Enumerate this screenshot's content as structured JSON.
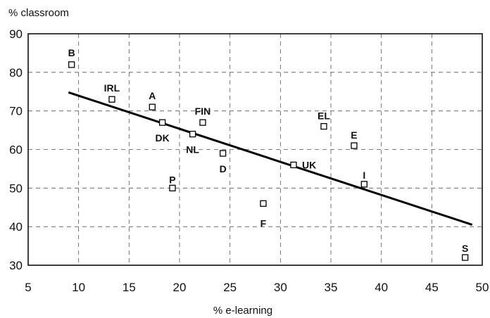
{
  "chart_data": {
    "type": "scatter",
    "ylabel": "% classroom",
    "xlabel": "% e-learning",
    "xlim": [
      5,
      50
    ],
    "ylim": [
      30,
      90
    ],
    "x_ticks": [
      5,
      10,
      15,
      20,
      25,
      30,
      35,
      40,
      45,
      50
    ],
    "y_ticks": [
      30,
      40,
      50,
      60,
      70,
      80,
      90
    ],
    "grid": true,
    "points": [
      {
        "label": "B",
        "x": 9.3,
        "y": 82
      },
      {
        "label": "IRL",
        "x": 13.3,
        "y": 73
      },
      {
        "label": "A",
        "x": 17.3,
        "y": 71
      },
      {
        "label": "DK",
        "x": 18.3,
        "y": 67
      },
      {
        "label": "NL",
        "x": 21.3,
        "y": 64
      },
      {
        "label": "FIN",
        "x": 22.3,
        "y": 67
      },
      {
        "label": "D",
        "x": 24.3,
        "y": 59
      },
      {
        "label": "P",
        "x": 19.3,
        "y": 50
      },
      {
        "label": "F",
        "x": 28.3,
        "y": 46
      },
      {
        "label": "UK",
        "x": 31.3,
        "y": 56
      },
      {
        "label": "EL",
        "x": 34.3,
        "y": 66
      },
      {
        "label": "E",
        "x": 37.3,
        "y": 61
      },
      {
        "label": "I",
        "x": 38.3,
        "y": 51
      },
      {
        "label": "S",
        "x": 48.3,
        "y": 32
      }
    ],
    "trendline": {
      "x": [
        9,
        49
      ],
      "y": [
        74.8,
        40.5
      ]
    }
  }
}
